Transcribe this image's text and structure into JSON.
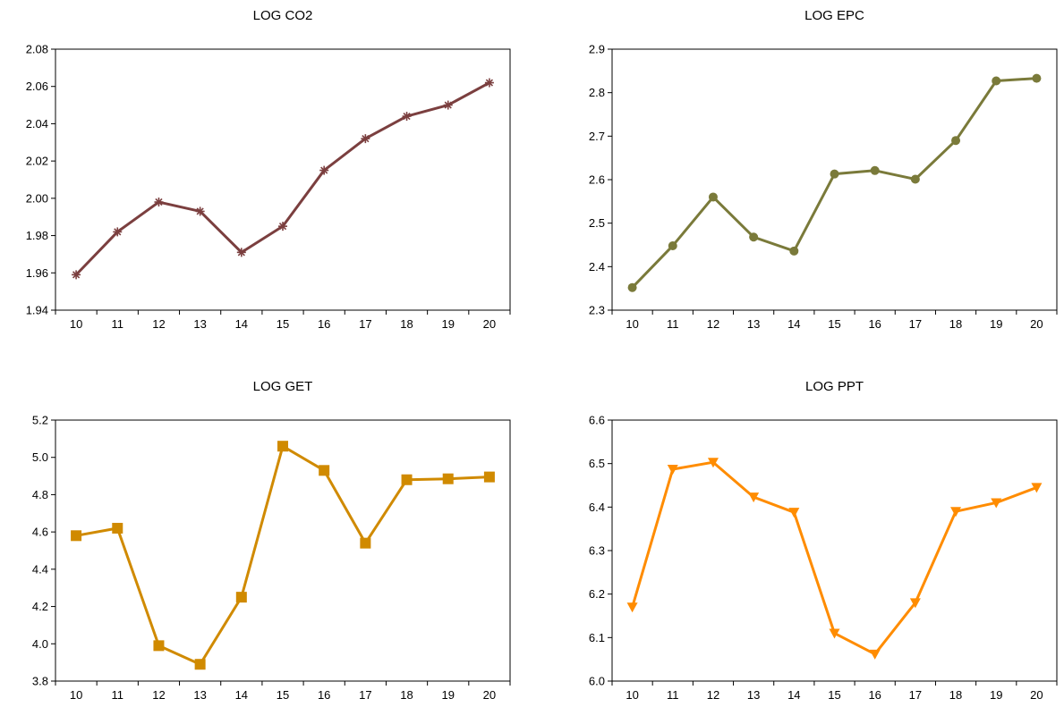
{
  "chart_data": [
    {
      "type": "line",
      "title": "LOG CO2",
      "categories": [
        "10",
        "11",
        "12",
        "13",
        "14",
        "15",
        "16",
        "17",
        "18",
        "19",
        "20"
      ],
      "series": [
        {
          "values": [
            1.959,
            1.982,
            1.998,
            1.993,
            1.971,
            1.985,
            2.015,
            2.032,
            2.044,
            2.05,
            2.062
          ]
        }
      ],
      "marker": "asterisk",
      "color": "#7B3F3F",
      "ylim": [
        1.94,
        2.08
      ],
      "yticks": [
        "1.94",
        "1.96",
        "1.98",
        "2.00",
        "2.02",
        "2.04",
        "2.06",
        "2.08"
      ],
      "grid": false
    },
    {
      "type": "line",
      "title": "LOG EPC",
      "categories": [
        "10",
        "11",
        "12",
        "13",
        "14",
        "15",
        "16",
        "17",
        "18",
        "19",
        "20"
      ],
      "series": [
        {
          "values": [
            2.352,
            2.448,
            2.56,
            2.468,
            2.436,
            2.613,
            2.621,
            2.601,
            2.69,
            2.827,
            2.833
          ]
        }
      ],
      "marker": "circle",
      "color": "#7A7A3A",
      "ylim": [
        2.3,
        2.9
      ],
      "yticks": [
        "2.3",
        "2.4",
        "2.5",
        "2.6",
        "2.7",
        "2.8",
        "2.9"
      ],
      "grid": false
    },
    {
      "type": "line",
      "title": "LOG GET",
      "categories": [
        "10",
        "11",
        "12",
        "13",
        "14",
        "15",
        "16",
        "17",
        "18",
        "19",
        "20"
      ],
      "series": [
        {
          "values": [
            4.58,
            4.62,
            3.99,
            3.89,
            4.25,
            5.06,
            4.93,
            4.54,
            4.88,
            4.885,
            4.895
          ]
        }
      ],
      "marker": "square",
      "color": "#D08A00",
      "ylim": [
        3.8,
        5.2
      ],
      "yticks": [
        "3.8",
        "4.0",
        "4.2",
        "4.4",
        "4.6",
        "4.8",
        "5.0",
        "5.2"
      ],
      "grid": false
    },
    {
      "type": "line",
      "title": "LOG PPT",
      "categories": [
        "10",
        "11",
        "12",
        "13",
        "14",
        "15",
        "16",
        "17",
        "18",
        "19",
        "20"
      ],
      "series": [
        {
          "values": [
            6.17,
            6.487,
            6.503,
            6.423,
            6.388,
            6.11,
            6.062,
            6.18,
            6.39,
            6.41,
            6.445
          ]
        }
      ],
      "marker": "triangle-down",
      "color": "#FF8C00",
      "ylim": [
        6.0,
        6.6
      ],
      "yticks": [
        "6.0",
        "6.1",
        "6.2",
        "6.3",
        "6.4",
        "6.5",
        "6.6"
      ],
      "grid": false
    }
  ]
}
